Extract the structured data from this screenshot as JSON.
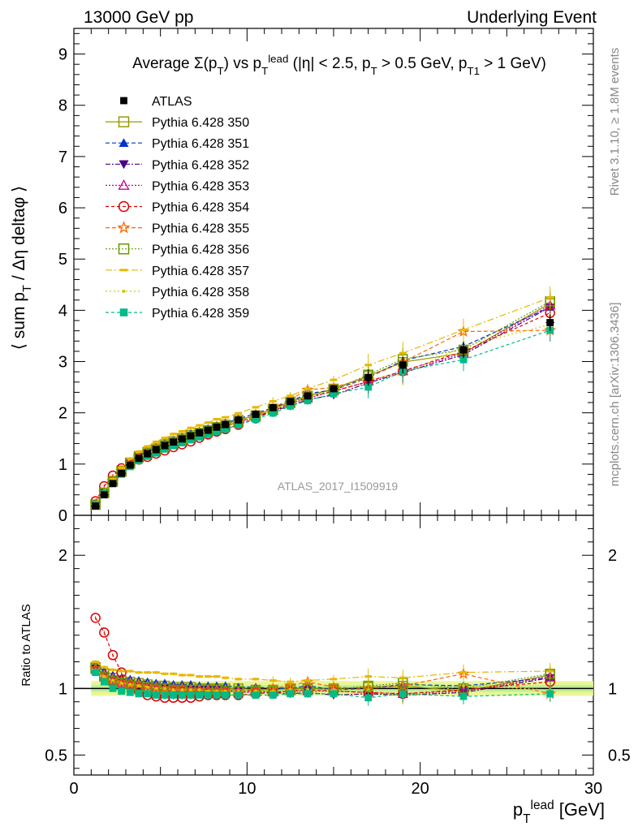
{
  "header": {
    "energy": "13000 GeV pp",
    "process": "Underlying Event"
  },
  "side_labels": {
    "rivet": "Rivet 3.1.10, ≥ 1.8M events",
    "mcplots": "mcplots.cern.ch [arXiv:1306.3436]"
  },
  "watermark": "ATLAS_2017_I1509919",
  "chart_data": [
    {
      "type": "scatter",
      "title": "Average Σ(p_T) vs p_T^lead (|η| < 2.5, p_T > 0.5 GeV, p_T1 > 1 GeV)",
      "ylabel": "⟨ sum p_T / Δη deltaφ ⟩",
      "xlim": [
        0,
        30
      ],
      "ylim": [
        0,
        9.5
      ],
      "y_ticks": [
        0,
        1,
        2,
        3,
        4,
        5,
        6,
        7,
        8,
        9
      ],
      "legend_position": "top-left",
      "x": [
        1.25,
        1.75,
        2.25,
        2.75,
        3.25,
        3.75,
        4.25,
        4.75,
        5.25,
        5.75,
        6.25,
        6.75,
        7.25,
        7.75,
        8.25,
        8.75,
        9.5,
        10.5,
        11.5,
        12.5,
        13.5,
        15.0,
        17.0,
        19.0,
        22.5,
        27.5
      ],
      "reference": {
        "name": "ATLAS",
        "values": [
          0.18,
          0.4,
          0.62,
          0.82,
          0.98,
          1.11,
          1.2,
          1.28,
          1.36,
          1.43,
          1.49,
          1.55,
          1.61,
          1.66,
          1.72,
          1.77,
          1.86,
          1.97,
          2.1,
          2.22,
          2.33,
          2.47,
          2.69,
          2.93,
          3.23,
          3.76
        ]
      },
      "series": [
        {
          "name": "Pythia 6.428 350",
          "color": "#999900",
          "marker": "square-open",
          "dash": "none"
        },
        {
          "name": "Pythia 6.428 351",
          "color": "#0033cc",
          "marker": "triangle-up",
          "dash": "5,3"
        },
        {
          "name": "Pythia 6.428 352",
          "color": "#4b0082",
          "marker": "triangle-down",
          "dash": "6,2,2,2"
        },
        {
          "name": "Pythia 6.428 353",
          "color": "#cc0099",
          "marker": "triangle-up-open",
          "dash": "2,2"
        },
        {
          "name": "Pythia 6.428 354",
          "color": "#dd0000",
          "marker": "circle-open",
          "dash": "4,3"
        },
        {
          "name": "Pythia 6.428 355",
          "color": "#ff6600",
          "marker": "star-open",
          "dash": "5,3"
        },
        {
          "name": "Pythia 6.428 356",
          "color": "#669900",
          "marker": "square-open",
          "dash": "2,2"
        },
        {
          "name": "Pythia 6.428 357",
          "color": "#e6b800",
          "marker": "dash",
          "dash": "8,3,2,3"
        },
        {
          "name": "Pythia 6.428 358",
          "color": "#cccc00",
          "marker": "dot",
          "dash": "2,3"
        },
        {
          "name": "Pythia 6.428 359",
          "color": "#00bb88",
          "marker": "square",
          "dash": "4,3"
        }
      ]
    },
    {
      "type": "line",
      "ylabel": "Ratio to ATLAS",
      "xlabel": "p_T^lead [GeV]",
      "xlim": [
        0,
        30
      ],
      "ylim": [
        0.35,
        2.3
      ],
      "y_ticks": [
        0.5,
        1,
        2
      ],
      "x_ticks": [
        0,
        10,
        20,
        30
      ],
      "x": [
        1.25,
        1.75,
        2.25,
        2.75,
        3.25,
        3.75,
        4.25,
        4.75,
        5.25,
        5.75,
        6.25,
        6.75,
        7.25,
        7.75,
        8.25,
        8.75,
        9.5,
        10.5,
        11.5,
        12.5,
        13.5,
        15.0,
        17.0,
        19.0,
        22.5,
        27.5
      ],
      "band": {
        "inner": 0.025,
        "outer": 0.055
      },
      "series": [
        {
          "name": "Pythia 6.428 350",
          "values": [
            1.16,
            1.11,
            1.08,
            1.06,
            1.05,
            1.04,
            1.03,
            1.02,
            1.02,
            1.01,
            1.01,
            1.01,
            1.0,
            1.0,
            1.0,
            1.0,
            1.0,
            0.99,
            0.99,
            1.0,
            1.0,
            1.0,
            1.01,
            1.02,
            0.98,
            1.1
          ]
        },
        {
          "name": "Pythia 6.428 351",
          "values": [
            1.18,
            1.13,
            1.1,
            1.08,
            1.07,
            1.06,
            1.05,
            1.04,
            1.04,
            1.03,
            1.03,
            1.03,
            1.02,
            1.02,
            1.02,
            1.02,
            1.01,
            1.01,
            1.0,
            1.0,
            1.02,
            0.99,
            1.0,
            1.03,
            1.02,
            1.08
          ]
        },
        {
          "name": "Pythia 6.428 352",
          "values": [
            1.15,
            1.1,
            1.07,
            1.05,
            1.04,
            1.03,
            1.02,
            1.01,
            1.01,
            1.0,
            1.0,
            1.0,
            0.99,
            0.99,
            0.99,
            0.99,
            0.98,
            0.98,
            0.97,
            0.96,
            0.97,
            0.95,
            0.96,
            0.95,
            0.97,
            1.08
          ]
        },
        {
          "name": "Pythia 6.428 353",
          "values": [
            1.14,
            1.09,
            1.06,
            1.04,
            1.03,
            1.02,
            1.01,
            1.0,
            1.0,
            0.99,
            0.99,
            0.99,
            0.98,
            0.98,
            0.98,
            0.98,
            0.97,
            0.97,
            0.97,
            0.98,
            0.98,
            0.98,
            0.97,
            0.96,
            0.98,
            1.09
          ]
        },
        {
          "name": "Pythia 6.428 354",
          "values": [
            1.53,
            1.42,
            1.25,
            1.12,
            1.02,
            0.98,
            0.95,
            0.94,
            0.93,
            0.93,
            0.93,
            0.93,
            0.94,
            0.95,
            0.95,
            0.95,
            0.95,
            0.96,
            0.97,
            0.98,
            0.99,
            0.98,
            0.97,
            0.96,
            0.99,
            1.05
          ]
        },
        {
          "name": "Pythia 6.428 355",
          "values": [
            1.15,
            1.1,
            1.07,
            1.05,
            1.04,
            1.03,
            1.02,
            1.01,
            1.0,
            1.0,
            1.0,
            0.99,
            0.99,
            0.99,
            0.99,
            0.99,
            0.98,
            0.99,
            1.0,
            1.02,
            1.05,
            1.01,
            1.0,
            1.02,
            1.11,
            0.96
          ]
        },
        {
          "name": "Pythia 6.428 356",
          "values": [
            1.15,
            1.09,
            1.06,
            1.04,
            1.03,
            1.02,
            1.01,
            1.0,
            1.0,
            0.99,
            0.99,
            0.99,
            0.99,
            0.99,
            0.99,
            0.98,
            0.98,
            0.98,
            0.98,
            0.99,
            1.0,
            0.99,
            1.02,
            1.04,
            1.0,
            1.11
          ]
        },
        {
          "name": "Pythia 6.428 357",
          "values": [
            1.2,
            1.16,
            1.14,
            1.13,
            1.13,
            1.12,
            1.12,
            1.12,
            1.11,
            1.11,
            1.1,
            1.1,
            1.09,
            1.09,
            1.09,
            1.08,
            1.07,
            1.07,
            1.06,
            1.05,
            1.06,
            1.07,
            1.09,
            1.08,
            1.12,
            1.13
          ]
        },
        {
          "name": "Pythia 6.428 358",
          "values": [
            1.14,
            1.09,
            1.06,
            1.04,
            1.03,
            1.02,
            1.01,
            1.0,
            1.0,
            0.99,
            0.99,
            0.99,
            0.99,
            0.98,
            0.98,
            0.98,
            0.98,
            0.98,
            0.98,
            0.99,
            0.99,
            0.99,
            0.99,
            0.94,
            1.02,
            0.99
          ]
        },
        {
          "name": "Pythia 6.428 359",
          "values": [
            1.12,
            1.05,
            1.0,
            0.98,
            0.97,
            0.96,
            0.96,
            0.95,
            0.95,
            0.95,
            0.95,
            0.95,
            0.95,
            0.95,
            0.95,
            0.95,
            0.95,
            0.95,
            0.95,
            0.96,
            0.96,
            0.96,
            0.93,
            0.96,
            0.94,
            0.96
          ]
        }
      ]
    }
  ]
}
